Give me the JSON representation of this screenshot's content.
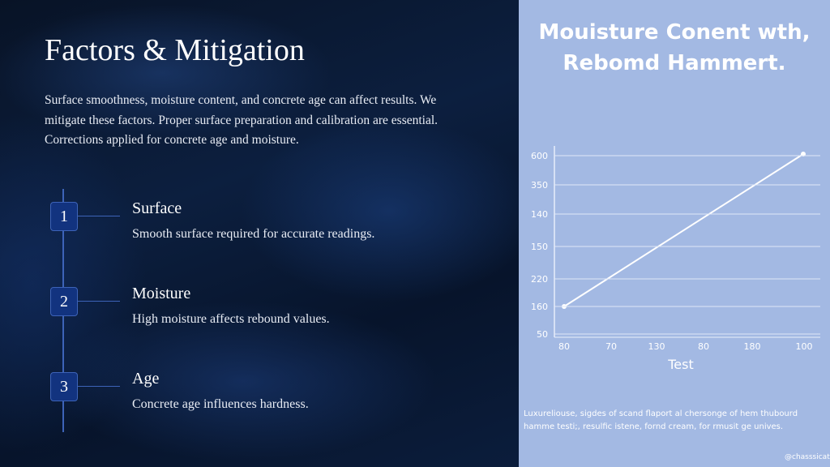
{
  "slide": {
    "title": "Factors & Mitigation",
    "body": "Surface smoothness, moisture content, and concrete age can affect results. We mitigate these factors. Proper surface preparation and calibration are essential. Corrections applied for concrete age and moisture.",
    "steps": [
      {
        "number": "1",
        "title": "Surface",
        "text": "Smooth surface required for accurate readings."
      },
      {
        "number": "2",
        "title": "Moisture",
        "text": "High moisture affects rebound values."
      },
      {
        "number": "3",
        "title": "Age",
        "text": "Concrete age influences hardness."
      }
    ]
  },
  "figure": {
    "title_lines": [
      "Mouisture Conent wth,",
      "Rebomd Hammert."
    ],
    "y_labels": [
      "600",
      "350",
      "140",
      "150",
      "220",
      "160",
      "50"
    ],
    "x_labels": [
      "80",
      "70",
      "130",
      "80",
      "180",
      "100"
    ],
    "x_axis_label": "Test",
    "caption_lines": [
      "Luxureliouse, sigdes of scand flaport al chersonge of hem thubourd",
      "hamme testi;, resulfic istene, fornd cream, for rmusit ge unives."
    ],
    "watermark": "@chasssicat.c"
  }
}
